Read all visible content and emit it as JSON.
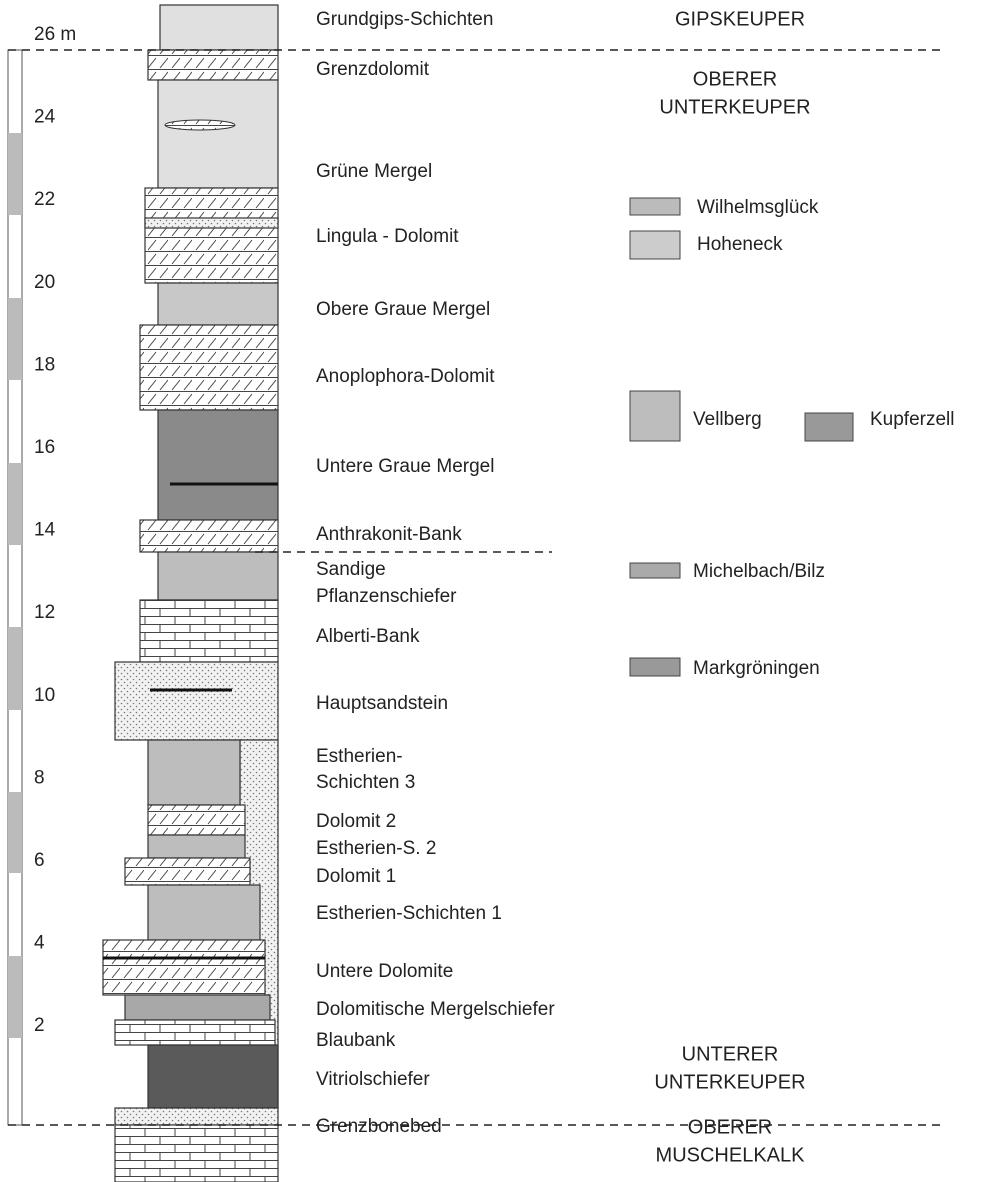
{
  "scale": {
    "ticks": [
      "26 m",
      "24",
      "22",
      "20",
      "18",
      "16",
      "14",
      "12",
      "10",
      "8",
      "6",
      "4",
      "2"
    ]
  },
  "layers": [
    "Grundgips-Schichten",
    "Grenzdolomit",
    "Grüne Mergel",
    "Lingula - Dolomit",
    "Obere Graue Mergel",
    "Anoplophora-Dolomit",
    "Untere Graue Mergel",
    "Anthrakonit-Bank",
    [
      "Sandige",
      "Pflanzenschiefer"
    ],
    "Alberti-Bank",
    "Hauptsandstein",
    [
      "Estherien-",
      "Schichten 3"
    ],
    "Dolomit 2",
    "Estherien-S. 2",
    "Dolomit 1",
    "Estherien-Schichten 1",
    "Untere Dolomite",
    "Dolomitische Mergelschiefer",
    "Blaubank",
    "Vitriolschiefer",
    "Grenzbonebed"
  ],
  "units": [
    [
      "GIPSKEUPER"
    ],
    [
      "OBERER",
      "UNTERKEUPER"
    ],
    [
      "UNTERER",
      "UNTERKEUPER"
    ],
    [
      "OBERER",
      "MUSCHELKALK"
    ]
  ],
  "legend": [
    "Wilhelmsglück",
    "Hoheneck",
    "Vellberg",
    "Kupferzell",
    "Michelbach/Bilz",
    "Markgröningen"
  ]
}
